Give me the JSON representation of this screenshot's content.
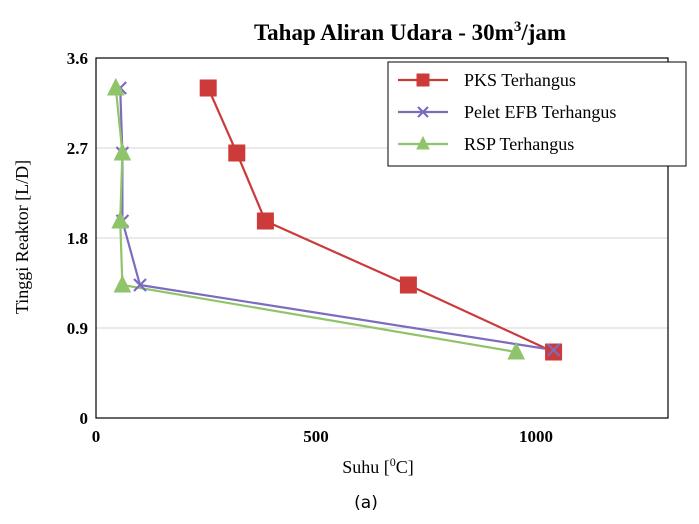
{
  "chart_data": {
    "type": "line",
    "title": "Tahap Aliran Udara - 30m³/jam",
    "title_parts": {
      "prefix": "Tahap Aliran Udara - 30m",
      "sup": "3",
      "suffix": "/jam"
    },
    "xlabel": "Suhu [⁰C]",
    "xlabel_parts": {
      "prefix": "Suhu [",
      "sup": "0",
      "suffix": "C]"
    },
    "ylabel": "Tinggi Reaktor [L/D]",
    "caption": "(a)",
    "xlim": [
      0,
      1300
    ],
    "ylim": [
      0,
      3.6
    ],
    "xticks": [
      "0",
      "500",
      "1000"
    ],
    "xtick_values": [
      0,
      500,
      1000
    ],
    "yticks": [
      "0",
      "0.9",
      "1.8",
      "2.7",
      "3.6"
    ],
    "ytick_values": [
      0,
      0.9,
      1.8,
      2.7,
      3.6
    ],
    "grid": "horizontal",
    "legend_position": "top-right",
    "series": [
      {
        "name": "PKS Terhangus",
        "color": "#cc3a3a",
        "marker": "square",
        "points": [
          [
            255,
            3.3
          ],
          [
            320,
            2.65
          ],
          [
            385,
            1.97
          ],
          [
            710,
            1.33
          ],
          [
            1040,
            0.66
          ]
        ]
      },
      {
        "name": "Pelet EFB Terhangus",
        "color": "#7b6cbf",
        "marker": "x",
        "points": [
          [
            55,
            3.3
          ],
          [
            60,
            2.65
          ],
          [
            60,
            1.97
          ],
          [
            100,
            1.33
          ],
          [
            1040,
            0.68
          ]
        ]
      },
      {
        "name": "RSP Terhangus",
        "color": "#8fc46a",
        "marker": "triangle",
        "points": [
          [
            45,
            3.3
          ],
          [
            60,
            2.65
          ],
          [
            55,
            1.97
          ],
          [
            60,
            1.33
          ],
          [
            955,
            0.66
          ]
        ]
      }
    ]
  }
}
